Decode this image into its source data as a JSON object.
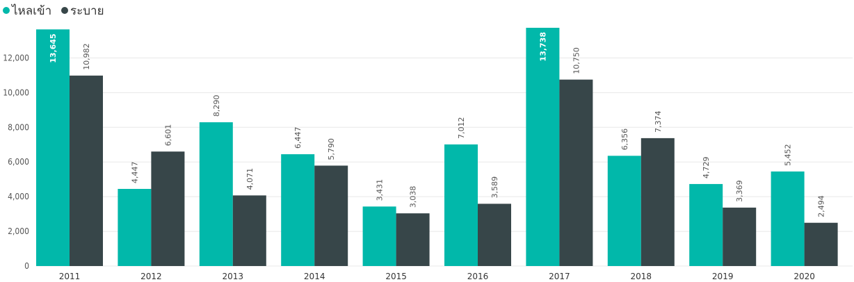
{
  "chart_data": {
    "type": "bar",
    "categories": [
      "2011",
      "2012",
      "2013",
      "2014",
      "2015",
      "2016",
      "2017",
      "2018",
      "2019",
      "2020"
    ],
    "series": [
      {
        "name": "ไหลเข้า",
        "color": "#01b8aa",
        "values": [
          13645,
          4447,
          8290,
          6447,
          3431,
          7012,
          13738,
          6356,
          4729,
          5452
        ],
        "labels": [
          "13,645",
          "4,447",
          "8,290",
          "6,447",
          "3,431",
          "7,012",
          "13,738",
          "6,356",
          "4,729",
          "5,452"
        ]
      },
      {
        "name": "ระบาย",
        "color": "#374649",
        "values": [
          10982,
          6601,
          4071,
          5790,
          3038,
          3589,
          10750,
          7374,
          3369,
          2494
        ],
        "labels": [
          "10,982",
          "6,601",
          "4,071",
          "5,790",
          "3,038",
          "3,589",
          "10,750",
          "7,374",
          "3,369",
          "2,494"
        ]
      }
    ],
    "yticks": [
      0,
      2000,
      4000,
      6000,
      8000,
      10000,
      12000
    ],
    "ytick_labels": [
      "0",
      "2,000",
      "4,000",
      "6,000",
      "8,000",
      "10,000",
      "12,000"
    ],
    "ylim": [
      0,
      13738
    ],
    "grid": true,
    "legend_position": "top-left",
    "title": "",
    "xlabel": "",
    "ylabel": ""
  }
}
